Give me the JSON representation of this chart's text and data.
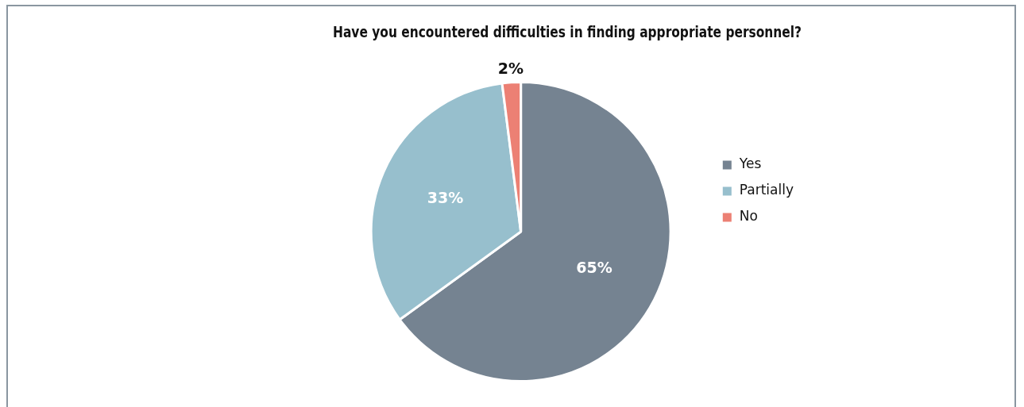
{
  "chart_data": {
    "type": "pie",
    "title": "Have you encountered difficulties in finding appropriate personnel?",
    "categories": [
      "Yes",
      "Partially",
      "No"
    ],
    "values": [
      65,
      33,
      2
    ],
    "colors": [
      "#758391",
      "#97bfcd",
      "#ec8074"
    ],
    "value_labels": [
      "65%",
      "33%",
      "2%"
    ],
    "legend": "right"
  }
}
